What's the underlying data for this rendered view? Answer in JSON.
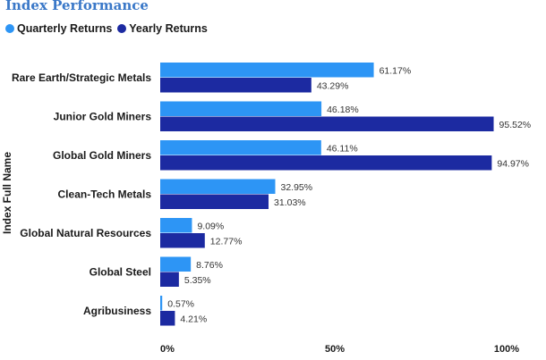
{
  "colors": {
    "quarterly": "#2d95f5",
    "yearly": "#1c2aa1"
  },
  "chart_data": {
    "type": "bar",
    "orientation": "horizontal",
    "title": "Index Performance",
    "ylabel": "Index Full Name",
    "xlim": [
      0,
      100
    ],
    "x_ticks": [
      "0%",
      "50%",
      "100%"
    ],
    "legend_position": "top-left",
    "categories": [
      "Rare Earth/Strategic Metals",
      "Junior Gold Miners",
      "Global Gold Miners",
      "Clean-Tech Metals",
      "Global Natural Resources",
      "Global Steel",
      "Agribusiness"
    ],
    "series": [
      {
        "name": "Quarterly Returns",
        "values": [
          61.17,
          46.18,
          46.11,
          32.95,
          9.09,
          8.76,
          0.57
        ],
        "labels": [
          "61.17%",
          "46.18%",
          "46.11%",
          "32.95%",
          "9.09%",
          "8.76%",
          "0.57%"
        ]
      },
      {
        "name": "Yearly Returns",
        "values": [
          43.29,
          95.52,
          94.97,
          31.03,
          12.77,
          5.35,
          4.21
        ],
        "labels": [
          "43.29%",
          "95.52%",
          "94.97%",
          "31.03%",
          "12.77%",
          "5.35%",
          "4.21%"
        ]
      }
    ]
  }
}
